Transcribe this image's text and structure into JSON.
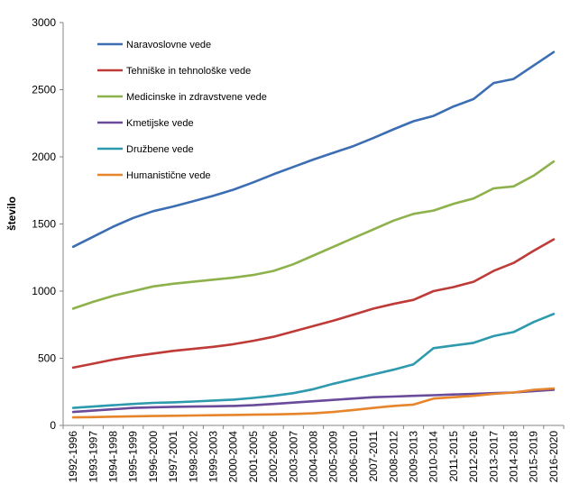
{
  "chart_data": {
    "type": "line",
    "ylabel": "število",
    "xlabel": "",
    "ylim": [
      0,
      3000
    ],
    "yticks": [
      "0",
      "500",
      "1000",
      "1500",
      "2000",
      "2500",
      "3000"
    ],
    "categories": [
      "1992-1996",
      "1993-1997",
      "1994-1998",
      "1995-1999",
      "1996-2000",
      "1997-2001",
      "1998-2002",
      "1999-2003",
      "2000-2004",
      "2001-2005",
      "2002-2006",
      "2003-2007",
      "2004-2008",
      "2005-2009",
      "2006-2010",
      "2007-2011",
      "2008-2012",
      "2009-2013",
      "2010-2014",
      "2011-2015",
      "2012-2016",
      "2013-2017",
      "2014-2018",
      "2015-2019",
      "2016-2020"
    ],
    "legend_position": "top-left",
    "grid": false,
    "series": [
      {
        "name": "Naravoslovne vede",
        "color": "#3C6EB4",
        "values": [
          1330,
          1405,
          1480,
          1545,
          1595,
          1630,
          1670,
          1710,
          1755,
          1810,
          1870,
          1925,
          1980,
          2030,
          2080,
          2140,
          2205,
          2265,
          2305,
          2375,
          2430,
          2550,
          2580,
          2680,
          2780
        ]
      },
      {
        "name": "Tehniške in tehnološke vede",
        "color": "#BE3B37",
        "values": [
          430,
          460,
          490,
          515,
          535,
          555,
          570,
          585,
          605,
          630,
          660,
          700,
          740,
          780,
          825,
          870,
          905,
          935,
          1000,
          1030,
          1070,
          1150,
          1210,
          1300,
          1385
        ]
      },
      {
        "name": "Medicinske in zdravstvene vede",
        "color": "#8DB24C",
        "values": [
          870,
          920,
          965,
          1000,
          1035,
          1055,
          1070,
          1085,
          1100,
          1120,
          1150,
          1200,
          1265,
          1330,
          1395,
          1460,
          1525,
          1575,
          1600,
          1650,
          1690,
          1765,
          1780,
          1860,
          1965
        ]
      },
      {
        "name": "Kmetijske vede",
        "color": "#6A4A9A",
        "values": [
          100,
          110,
          120,
          130,
          135,
          138,
          140,
          142,
          145,
          150,
          160,
          170,
          180,
          190,
          200,
          210,
          215,
          220,
          225,
          230,
          235,
          240,
          245,
          255,
          265
        ]
      },
      {
        "name": "Družbene vede",
        "color": "#2E9AAE",
        "values": [
          130,
          140,
          150,
          160,
          168,
          172,
          178,
          185,
          192,
          205,
          220,
          240,
          270,
          310,
          345,
          380,
          415,
          455,
          575,
          595,
          615,
          665,
          695,
          770,
          830
        ]
      },
      {
        "name": "Humanistične vede",
        "color": "#E6852C",
        "values": [
          60,
          62,
          65,
          68,
          70,
          72,
          74,
          76,
          78,
          80,
          82,
          85,
          90,
          100,
          115,
          130,
          145,
          155,
          200,
          210,
          220,
          235,
          245,
          265,
          275
        ]
      }
    ]
  }
}
